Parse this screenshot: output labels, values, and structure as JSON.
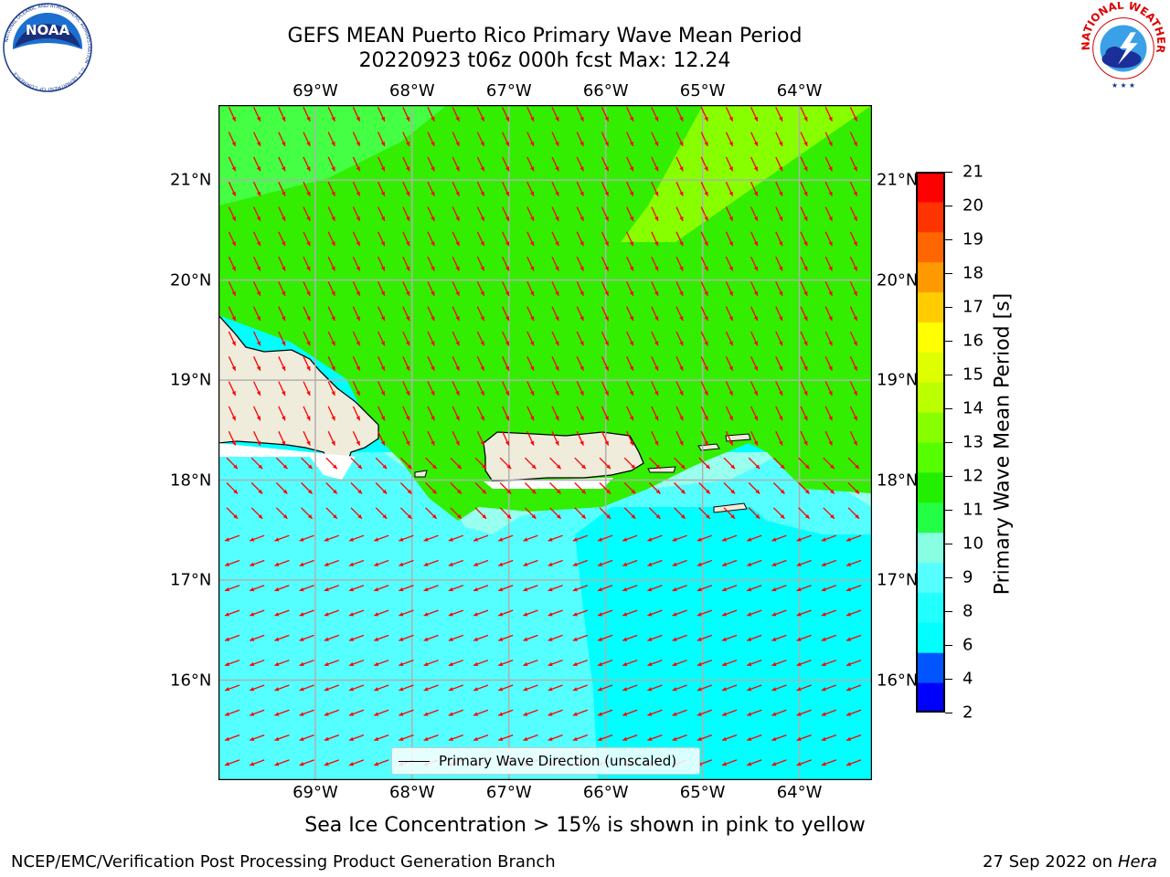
{
  "title": {
    "line1": "GEFS MEAN Puerto Rico Primary Wave Mean Period",
    "line2": "20220923 t06z 000h fcst   Max: 12.24"
  },
  "axes": {
    "lon_labels": [
      "69°W",
      "68°W",
      "67°W",
      "66°W",
      "65°W",
      "64°W"
    ],
    "lat_labels": [
      "21°N",
      "20°N",
      "19°N",
      "18°N",
      "17°N",
      "16°N"
    ],
    "lon_range": [
      -70.0,
      -63.25
    ],
    "lat_range": [
      15.0,
      21.75
    ],
    "grid": true
  },
  "colorbar": {
    "label": "Primary Wave Mean Period [s]",
    "ticks": [
      "21",
      "20",
      "19",
      "18",
      "17",
      "16",
      "15",
      "14",
      "13",
      "12",
      "11",
      "10",
      "9",
      "8",
      "6",
      "4",
      "2"
    ],
    "colors": [
      "#0000ff",
      "#0055ff",
      "#00ffff",
      "#22ffff",
      "#55ffff",
      "#88ffe0",
      "#22ff44",
      "#22ee00",
      "#55ff00",
      "#88ff00",
      "#bbff00",
      "#ddff00",
      "#ffff00",
      "#ffcc00",
      "#ff9900",
      "#ff6600",
      "#ff3300",
      "#ff0000"
    ]
  },
  "legend": {
    "label": "Primary Wave Direction (unscaled)"
  },
  "map_colors": {
    "land": "#efecdc",
    "sea_green": "#33ee00",
    "sea_green_light": "#44ff44",
    "sea_yellow_green": "#88ff00",
    "sea_cyan": "#00ffff",
    "sea_cyan_light": "#55ffff",
    "sea_aqua": "#99ffee",
    "arrow": "#ff0000"
  },
  "note": "Sea Ice Concentration > 15% is shown in pink to yellow",
  "footer": {
    "left": "NCEP/EMC/Verification Post Processing Product Generation Branch",
    "right_date": "27 Sep 2022 on",
    "right_host": "Hera"
  },
  "logos": {
    "noaa_text": "NOAA",
    "noaa_ring": "NATIONAL OCEANIC AND ATMOSPHERIC ADMINISTRATION · U.S. DEPARTMENT OF COMMERCE",
    "nws_ring": "NATIONAL WEATHER SERVICE"
  }
}
